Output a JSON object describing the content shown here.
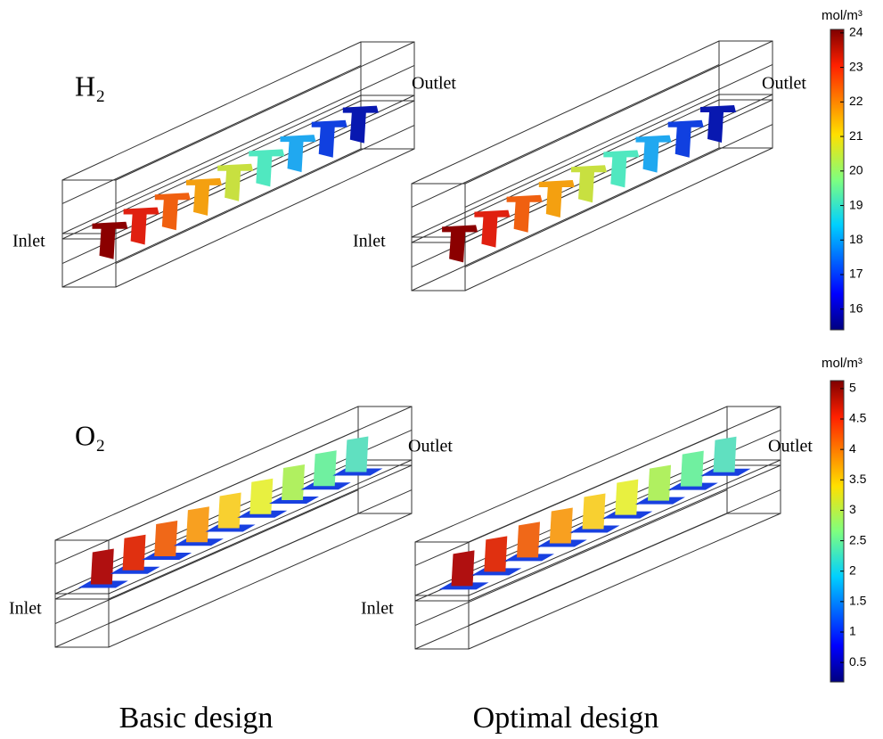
{
  "panels": [
    {
      "label": "H₂",
      "basic": {
        "inlet": "Inlet",
        "outlet": "Outlet"
      },
      "optimal": {
        "inlet": "Inlet",
        "outlet": "Outlet"
      },
      "colorbar": {
        "unit": "mol/m³",
        "lim": [
          15.4,
          24.1
        ],
        "ticks": [
          16,
          17,
          18,
          19,
          20,
          21,
          22,
          23,
          24
        ]
      }
    },
    {
      "label": "O₂",
      "basic": {
        "inlet": "Inlet",
        "outlet": "Outlet"
      },
      "optimal": {
        "inlet": "Inlet",
        "outlet": "Outlet"
      },
      "colorbar": {
        "unit": "mol/m³",
        "lim": [
          0.18,
          5.13
        ],
        "ticks": [
          0.5,
          1,
          1.5,
          2,
          2.5,
          3,
          3.5,
          4,
          4.5,
          5
        ]
      }
    }
  ],
  "captions": {
    "basic": "Basic design",
    "optimal": "Optimal design"
  }
}
